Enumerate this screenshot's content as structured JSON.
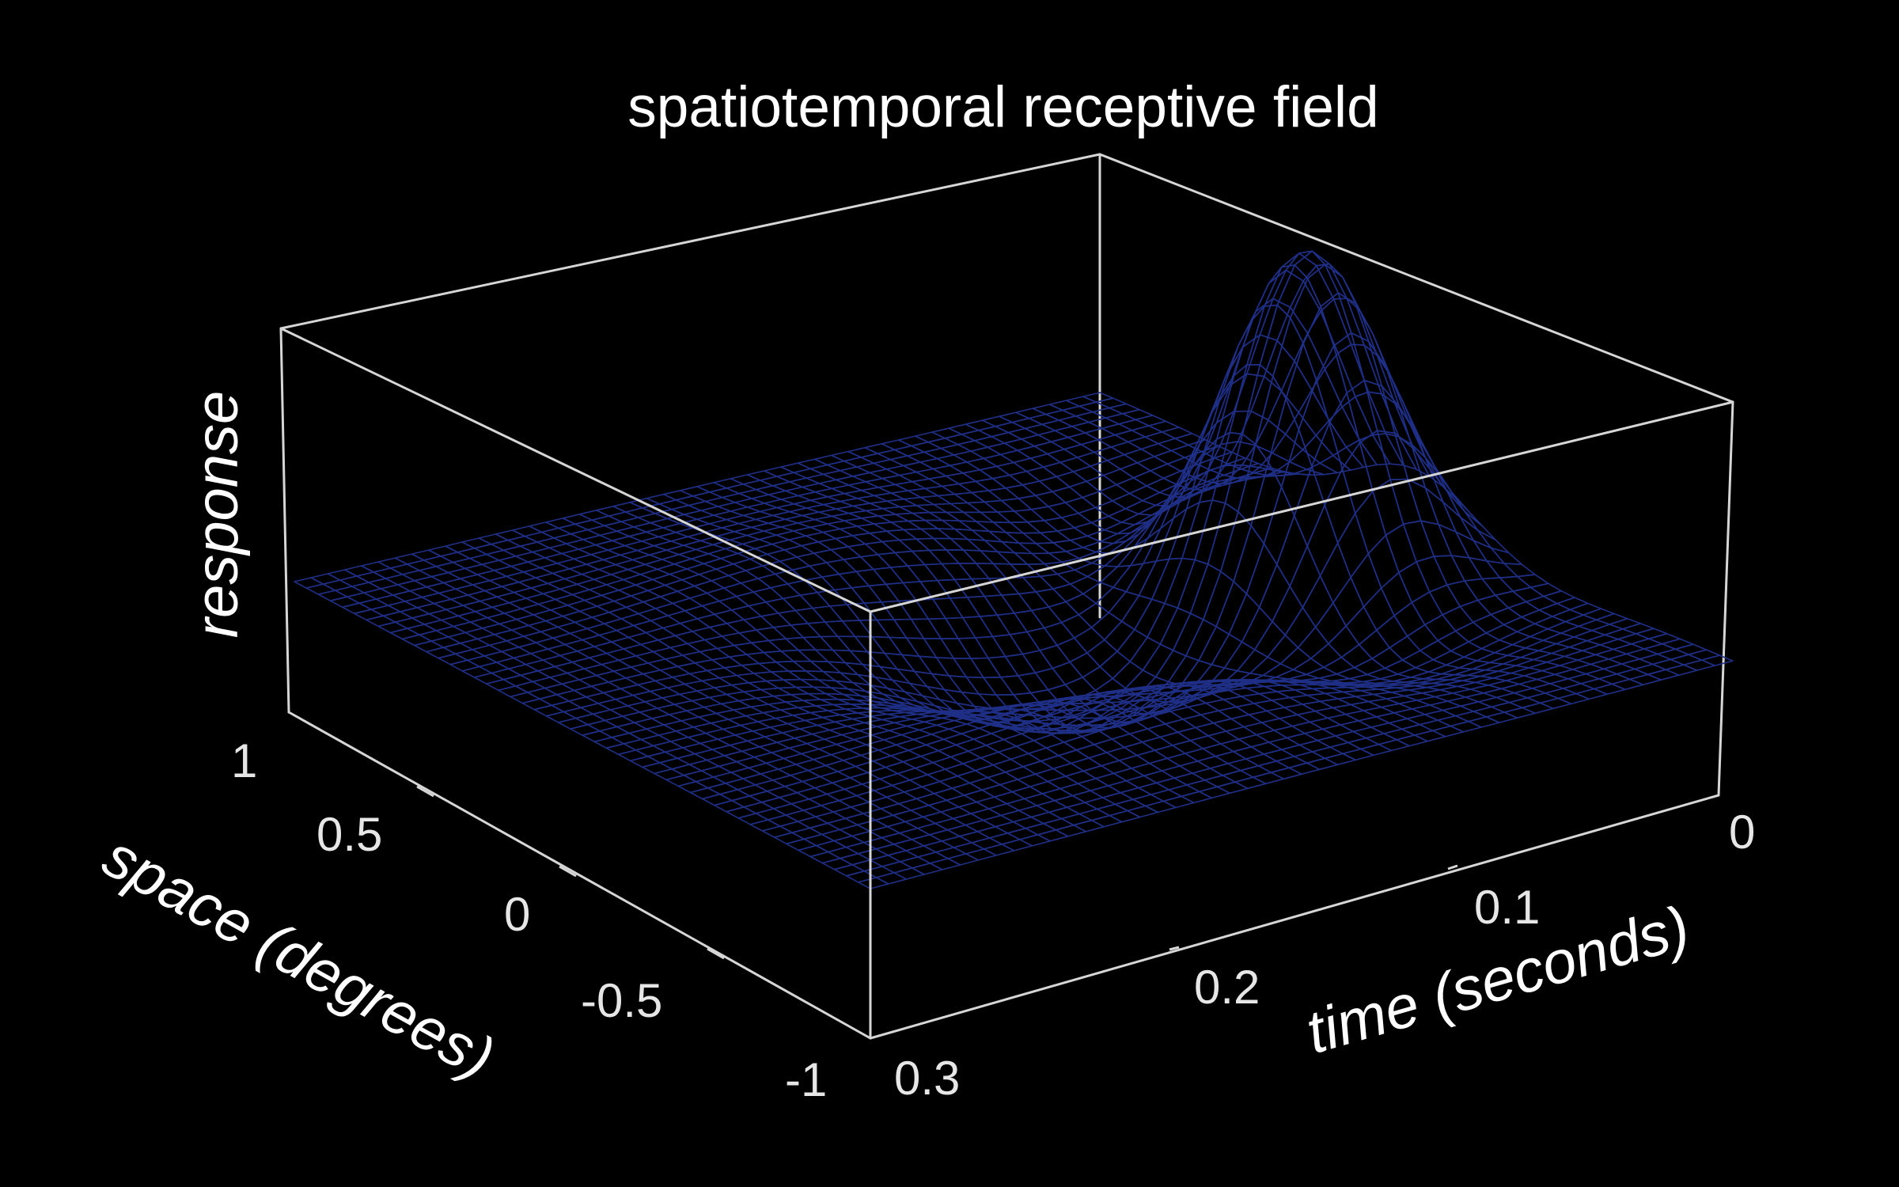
{
  "chart_data": {
    "type": "surface",
    "title": "spatiotemporal receptive field",
    "xlabel": "time (seconds)",
    "ylabel": "space (degrees)",
    "zlabel": "response",
    "x_ticks": [
      "0",
      "0.1",
      "0.2",
      "0.3"
    ],
    "y_ticks": [
      "1",
      "0.5",
      "0",
      "-0.5",
      "-1"
    ],
    "xlim": [
      0,
      0.3
    ],
    "ylim": [
      -1,
      1
    ],
    "z_ticks_shown": false,
    "grid": false,
    "box": true,
    "surface": {
      "description": "center-surround receptive field: excitatory center peak followed by inhibitory trough",
      "x_samples": 49,
      "y_samples": 49,
      "center_peak": {
        "time": 0.04,
        "space": 0.0,
        "response": 1.0
      },
      "center_trough": {
        "time": 0.12,
        "space": 0.0,
        "response": -0.35
      },
      "surround_dip": {
        "time": 0.06,
        "space_abs": 0.45,
        "response": -0.12
      },
      "surround_bump": {
        "time": 0.15,
        "space_abs": 0.45,
        "response": 0.08
      },
      "baseline": 0.0
    },
    "colors": {
      "background": "#000000",
      "box": "#d6d6d6",
      "mesh_edge": "#1f2f86",
      "surface_light": "#ffffff",
      "surface_shade": "#9ea4ad",
      "text": "#ffffff"
    }
  }
}
